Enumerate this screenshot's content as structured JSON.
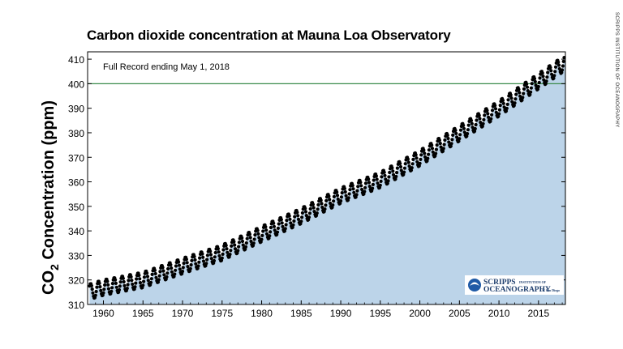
{
  "chart_data": {
    "type": "scatter",
    "title": "Carbon dioxide concentration at Mauna Loa Observatory",
    "ylabel_main": "CO",
    "ylabel_sub": "2",
    "ylabel_rest": " Concentration (ppm)",
    "xlabel": "",
    "annotation": "Full Record ending May 1, 2018",
    "reference_line": {
      "y": 400,
      "color": "#3a8a4a"
    },
    "fill_color": "#bcd4e9",
    "marker_color": "#000000",
    "xlim": [
      1958,
      2018.4
    ],
    "ylim": [
      310,
      413
    ],
    "x_ticks": [
      1960,
      1965,
      1970,
      1975,
      1980,
      1985,
      1990,
      1995,
      2000,
      2005,
      2010,
      2015
    ],
    "y_ticks": [
      310,
      320,
      330,
      340,
      350,
      360,
      370,
      380,
      390,
      400,
      410
    ],
    "trend_anchors": {
      "x": [
        1958.25,
        1960,
        1965,
        1970,
        1975,
        1980,
        1985,
        1990,
        1995,
        2000,
        2005,
        2010,
        2015,
        2018.33
      ],
      "y": [
        315.2,
        316.9,
        320.0,
        325.7,
        331.1,
        338.7,
        346.1,
        354.4,
        360.8,
        369.7,
        379.8,
        389.9,
        401.0,
        408.5
      ]
    },
    "seasonal_amplitude_ppm": 3.2,
    "grid": false,
    "legend": "none"
  },
  "logo": {
    "line1": "SCRIPPS",
    "line1_small": "INSTITUTION OF",
    "line2": "OCEANOGRAPHY",
    "line2_small": "UC San Diego"
  },
  "side_credit": "SCRIPPS INSTITUTION OF OCEANOGRAPHY"
}
